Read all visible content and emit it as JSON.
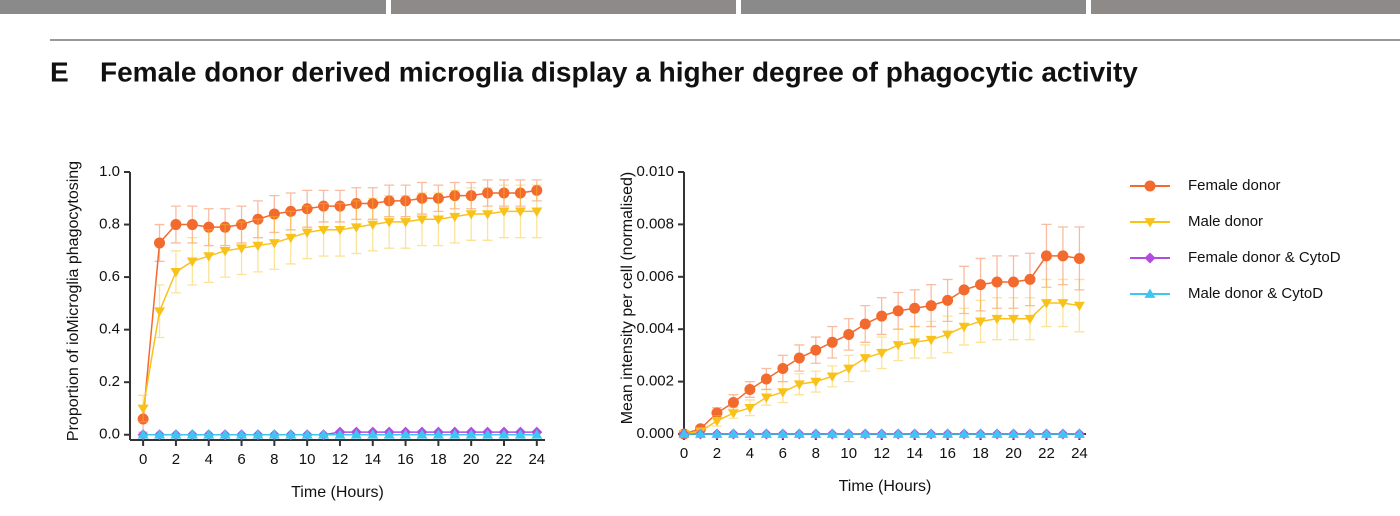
{
  "panel_label": "E",
  "title": "Female donor derived microglia display a higher degree of phagocytic activity",
  "chart_data": [
    {
      "type": "line",
      "x_label": "Time (Hours)",
      "y_label": "Proportion of ioMicroglia phagocytosing",
      "legend": "right",
      "x": [
        0,
        1,
        2,
        3,
        4,
        5,
        6,
        7,
        8,
        9,
        10,
        11,
        12,
        13,
        14,
        15,
        16,
        17,
        18,
        19,
        20,
        21,
        22,
        23,
        24
      ],
      "xlim": [
        -0.8,
        24.5
      ],
      "xticks": [
        0,
        2,
        4,
        6,
        8,
        10,
        12,
        14,
        16,
        18,
        20,
        22,
        24
      ],
      "ylim": [
        -0.02,
        1.0
      ],
      "yticks": [
        {
          "value": 0,
          "label": "0.0"
        },
        0.2,
        0.4,
        0.6,
        0.8,
        {
          "value": 1,
          "label": "1.0"
        }
      ],
      "series": [
        {
          "name": "Female donor",
          "color": "#f26a2e",
          "values": [
            0.06,
            0.73,
            0.8,
            0.8,
            0.79,
            0.79,
            0.8,
            0.82,
            0.84,
            0.85,
            0.86,
            0.87,
            0.87,
            0.88,
            0.88,
            0.89,
            0.89,
            0.9,
            0.9,
            0.91,
            0.91,
            0.92,
            0.92,
            0.92,
            0.93
          ],
          "errors": [
            0.05,
            0.07,
            0.07,
            0.07,
            0.07,
            0.07,
            0.07,
            0.07,
            0.07,
            0.07,
            0.07,
            0.06,
            0.06,
            0.06,
            0.06,
            0.06,
            0.06,
            0.06,
            0.05,
            0.05,
            0.05,
            0.05,
            0.05,
            0.05,
            0.04
          ]
        },
        {
          "name": "Male donor",
          "color": "#f9c21a",
          "values": [
            0.1,
            0.47,
            0.62,
            0.66,
            0.68,
            0.7,
            0.71,
            0.72,
            0.73,
            0.75,
            0.77,
            0.78,
            0.78,
            0.79,
            0.8,
            0.81,
            0.81,
            0.82,
            0.82,
            0.83,
            0.84,
            0.84,
            0.85,
            0.85,
            0.85
          ],
          "errors": [
            0.05,
            0.1,
            0.08,
            0.09,
            0.1,
            0.1,
            0.1,
            0.1,
            0.1,
            0.1,
            0.1,
            0.1,
            0.1,
            0.1,
            0.1,
            0.1,
            0.1,
            0.1,
            0.1,
            0.1,
            0.1,
            0.1,
            0.1,
            0.1,
            0.1
          ]
        },
        {
          "name": "Female donor & CytoD",
          "color": "#b44be1",
          "values": [
            0,
            0,
            0,
            0,
            0,
            0,
            0,
            0,
            0,
            0,
            0,
            0,
            0.01,
            0.01,
            0.01,
            0.01,
            0.01,
            0.01,
            0.01,
            0.01,
            0.01,
            0.01,
            0.01,
            0.01,
            0.01
          ]
        },
        {
          "name": "Male donor & CytoD",
          "color": "#3ec6f0",
          "values": [
            0,
            0,
            0,
            0,
            0,
            0,
            0,
            0,
            0,
            0,
            0,
            0,
            0,
            0,
            0,
            0,
            0,
            0,
            0,
            0,
            0,
            0,
            0,
            0,
            0
          ]
        }
      ]
    },
    {
      "type": "line",
      "x_label": "Time (Hours)",
      "y_label": "Mean intensity per cell (normalised)",
      "x": [
        0,
        1,
        2,
        3,
        4,
        5,
        6,
        7,
        8,
        9,
        10,
        11,
        12,
        13,
        14,
        15,
        16,
        17,
        18,
        19,
        20,
        21,
        22,
        23,
        24
      ],
      "xlim": [
        0,
        24.4
      ],
      "xticks": [
        0,
        2,
        4,
        6,
        8,
        10,
        12,
        14,
        16,
        18,
        20,
        22,
        24
      ],
      "ylim": [
        0,
        0.01
      ],
      "yticks": [
        {
          "value": 0,
          "label": "0.000"
        },
        {
          "value": 0.002,
          "label": "0.002"
        },
        {
          "value": 0.004,
          "label": "0.004"
        },
        {
          "value": 0.006,
          "label": "0.006"
        },
        {
          "value": 0.008,
          "label": "0.008"
        },
        {
          "value": 0.01,
          "label": "0.010"
        }
      ],
      "series": [
        {
          "color": "#f26a2e",
          "values": [
            0,
            0.0002,
            0.0008,
            0.0012,
            0.0017,
            0.0021,
            0.0025,
            0.0029,
            0.0032,
            0.0035,
            0.0038,
            0.0042,
            0.0045,
            0.0047,
            0.0048,
            0.0049,
            0.0051,
            0.0055,
            0.0057,
            0.0058,
            0.0058,
            0.0059,
            0.0068,
            0.0068,
            0.0067
          ],
          "errors": [
            0,
            0.0001,
            0.0002,
            0.0003,
            0.0003,
            0.0004,
            0.0005,
            0.0005,
            0.0005,
            0.0006,
            0.0006,
            0.0007,
            0.0007,
            0.0007,
            0.0007,
            0.0008,
            0.0008,
            0.0009,
            0.001,
            0.001,
            0.001,
            0.001,
            0.0012,
            0.0011,
            0.0012
          ]
        },
        {
          "color": "#f9c21a",
          "values": [
            0,
            0.0001,
            0.0005,
            0.0008,
            0.001,
            0.0014,
            0.0016,
            0.0019,
            0.002,
            0.0022,
            0.0025,
            0.0029,
            0.0031,
            0.0034,
            0.0035,
            0.0036,
            0.0038,
            0.0041,
            0.0043,
            0.0044,
            0.0044,
            0.0044,
            0.005,
            0.005,
            0.0049
          ],
          "errors": [
            0,
            0.0001,
            0.0002,
            0.0002,
            0.0003,
            0.0003,
            0.0004,
            0.0004,
            0.0004,
            0.0004,
            0.0005,
            0.0005,
            0.0006,
            0.0006,
            0.0006,
            0.0007,
            0.0007,
            0.0007,
            0.0008,
            0.0008,
            0.0008,
            0.0008,
            0.0009,
            0.0009,
            0.001
          ]
        },
        {
          "color": "#b44be1",
          "values": [
            0,
            0,
            0,
            0,
            0,
            0,
            0,
            0,
            0,
            0,
            0,
            0,
            0,
            0,
            0,
            0,
            0,
            0,
            0,
            0,
            0,
            0,
            0,
            0,
            0
          ]
        },
        {
          "color": "#3ec6f0",
          "values": [
            0,
            0,
            0,
            0,
            0,
            0,
            0,
            0,
            0,
            0,
            0,
            0,
            0,
            0,
            0,
            0,
            0,
            0,
            0,
            0,
            0,
            0,
            0,
            0,
            0
          ]
        }
      ]
    }
  ]
}
